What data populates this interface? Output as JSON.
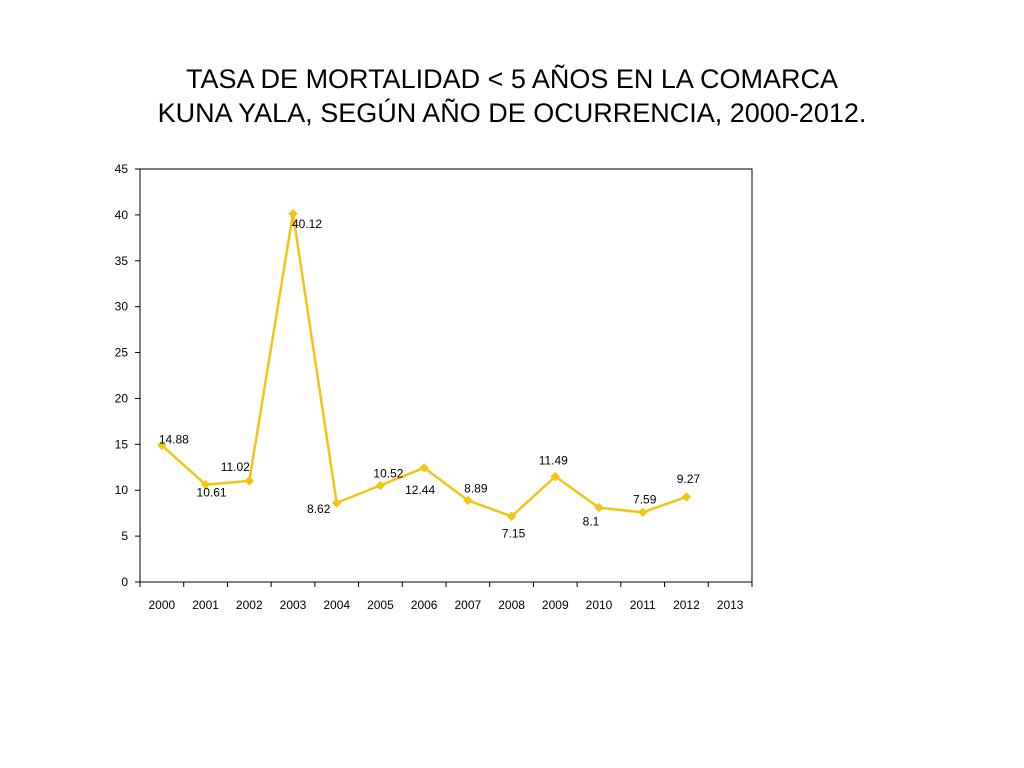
{
  "slide": {
    "title_line1": "TASA DE MORTALIDAD < 5 AÑOS EN LA COMARCA",
    "title_line2": "KUNA YALA, SEGÚN AÑO DE OCURRENCIA, 2000-2012."
  },
  "chart_data": {
    "type": "line",
    "title": "TASA DE MORTALIDAD < 5 AÑOS EN LA COMARCA KUNA YALA, SEGÚN AÑO DE OCURRENCIA, 2000-2012.",
    "xlabel": "",
    "ylabel": "",
    "categories": [
      "2000",
      "2001",
      "2002",
      "2003",
      "2004",
      "2005",
      "2006",
      "2007",
      "2008",
      "2009",
      "2010",
      "2011",
      "2012",
      "2013"
    ],
    "values": [
      14.88,
      10.61,
      11.02,
      40.12,
      8.62,
      10.52,
      12.44,
      8.89,
      7.15,
      11.49,
      8.1,
      7.59,
      9.27,
      null
    ],
    "data_labels": [
      "14.88",
      "10.61",
      "11.02",
      "40.12",
      "8.62",
      "10.52",
      "12.44",
      "8.89",
      "7.15",
      "11.49",
      "8.1",
      "7.59",
      "9.27",
      ""
    ],
    "ylim": [
      0,
      45
    ],
    "yticks": [
      "0",
      "5",
      "10",
      "15",
      "20",
      "25",
      "30",
      "35",
      "40",
      "45"
    ],
    "grid": false,
    "legend": "none",
    "line_color": "#F2C414",
    "marker": "diamond"
  }
}
